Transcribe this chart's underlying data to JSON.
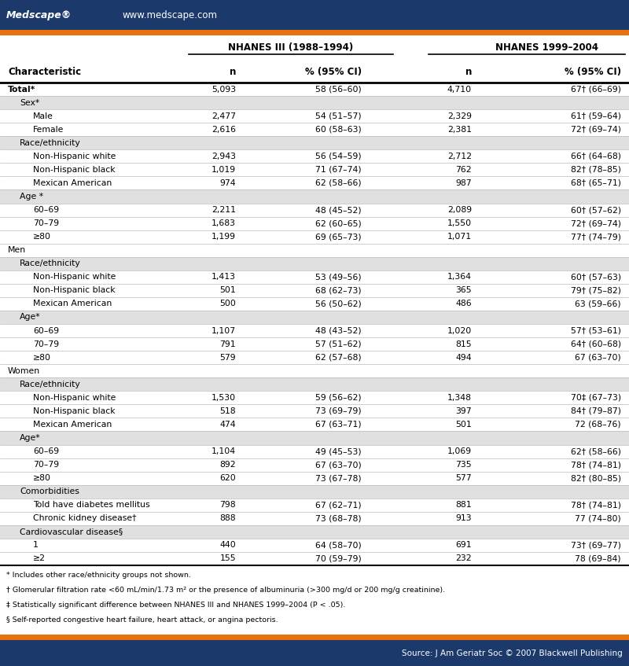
{
  "header_bg": "#1b3a6b",
  "header_text": "#ffffff",
  "orange_bar": "#e8720c",
  "footer_bg": "#1b3a6b",
  "footer_text": "#ffffff",
  "table_bg": "#ffffff",
  "shaded_bg": "#e0e0e0",
  "title_nhanes3": "NHANES III (1988–1994)",
  "title_nhanes4": "NHANES 1999–2004",
  "col_headers": [
    "Characteristic",
    "n",
    "% (95% CI)",
    "n",
    "% (95% CI)"
  ],
  "rows": [
    {
      "label": "Total*",
      "indent": 0,
      "bold": true,
      "n1": "5,093",
      "ci1": "58 (56–60)",
      "n2": "4,710",
      "ci2": "67† (66–69)",
      "shaded": false,
      "section": false
    },
    {
      "label": "Sex*",
      "indent": 1,
      "bold": false,
      "n1": "",
      "ci1": "",
      "n2": "",
      "ci2": "",
      "shaded": true,
      "section": true
    },
    {
      "label": "Male",
      "indent": 2,
      "bold": false,
      "n1": "2,477",
      "ci1": "54 (51–57)",
      "n2": "2,329",
      "ci2": "61† (59–64)",
      "shaded": false,
      "section": false
    },
    {
      "label": "Female",
      "indent": 2,
      "bold": false,
      "n1": "2,616",
      "ci1": "60 (58–63)",
      "n2": "2,381",
      "ci2": "72† (69–74)",
      "shaded": false,
      "section": false
    },
    {
      "label": "Race/ethnicity",
      "indent": 1,
      "bold": false,
      "n1": "",
      "ci1": "",
      "n2": "",
      "ci2": "",
      "shaded": true,
      "section": true
    },
    {
      "label": "Non-Hispanic white",
      "indent": 2,
      "bold": false,
      "n1": "2,943",
      "ci1": "56 (54–59)",
      "n2": "2,712",
      "ci2": "66† (64–68)",
      "shaded": false,
      "section": false
    },
    {
      "label": "Non-Hispanic black",
      "indent": 2,
      "bold": false,
      "n1": "1,019",
      "ci1": "71 (67–74)",
      "n2": "762",
      "ci2": "82† (78–85)",
      "shaded": false,
      "section": false
    },
    {
      "label": "Mexican American",
      "indent": 2,
      "bold": false,
      "n1": "974",
      "ci1": "62 (58–66)",
      "n2": "987",
      "ci2": "68† (65–71)",
      "shaded": false,
      "section": false
    },
    {
      "label": "Age *",
      "indent": 1,
      "bold": false,
      "n1": "",
      "ci1": "",
      "n2": "",
      "ci2": "",
      "shaded": true,
      "section": true
    },
    {
      "label": "60–69",
      "indent": 2,
      "bold": false,
      "n1": "2,211",
      "ci1": "48 (45–52)",
      "n2": "2,089",
      "ci2": "60† (57–62)",
      "shaded": false,
      "section": false
    },
    {
      "label": "70–79",
      "indent": 2,
      "bold": false,
      "n1": "1,683",
      "ci1": "62 (60–65)",
      "n2": "1,550",
      "ci2": "72† (69–74)",
      "shaded": false,
      "section": false
    },
    {
      "label": "≥80",
      "indent": 2,
      "bold": false,
      "n1": "1,199",
      "ci1": "69 (65–73)",
      "n2": "1,071",
      "ci2": "77† (74–79)",
      "shaded": false,
      "section": false
    },
    {
      "label": "Men",
      "indent": 0,
      "bold": false,
      "n1": "",
      "ci1": "",
      "n2": "",
      "ci2": "",
      "shaded": false,
      "section": true
    },
    {
      "label": "Race/ethnicity",
      "indent": 1,
      "bold": false,
      "n1": "",
      "ci1": "",
      "n2": "",
      "ci2": "",
      "shaded": true,
      "section": true
    },
    {
      "label": "Non-Hispanic white",
      "indent": 2,
      "bold": false,
      "n1": "1,413",
      "ci1": "53 (49–56)",
      "n2": "1,364",
      "ci2": "60† (57–63)",
      "shaded": false,
      "section": false
    },
    {
      "label": "Non-Hispanic black",
      "indent": 2,
      "bold": false,
      "n1": "501",
      "ci1": "68 (62–73)",
      "n2": "365",
      "ci2": "79† (75–82)",
      "shaded": false,
      "section": false
    },
    {
      "label": "Mexican American",
      "indent": 2,
      "bold": false,
      "n1": "500",
      "ci1": "56 (50–62)",
      "n2": "486",
      "ci2": "63 (59–66)",
      "shaded": false,
      "section": false
    },
    {
      "label": "Age*",
      "indent": 1,
      "bold": false,
      "n1": "",
      "ci1": "",
      "n2": "",
      "ci2": "",
      "shaded": true,
      "section": true
    },
    {
      "label": "60–69",
      "indent": 2,
      "bold": false,
      "n1": "1,107",
      "ci1": "48 (43–52)",
      "n2": "1,020",
      "ci2": "57† (53–61)",
      "shaded": false,
      "section": false
    },
    {
      "label": "70–79",
      "indent": 2,
      "bold": false,
      "n1": "791",
      "ci1": "57 (51–62)",
      "n2": "815",
      "ci2": "64† (60–68)",
      "shaded": false,
      "section": false
    },
    {
      "label": "≥80",
      "indent": 2,
      "bold": false,
      "n1": "579",
      "ci1": "62 (57–68)",
      "n2": "494",
      "ci2": "67 (63–70)",
      "shaded": false,
      "section": false
    },
    {
      "label": "Women",
      "indent": 0,
      "bold": false,
      "n1": "",
      "ci1": "",
      "n2": "",
      "ci2": "",
      "shaded": false,
      "section": true
    },
    {
      "label": "Race/ethnicity",
      "indent": 1,
      "bold": false,
      "n1": "",
      "ci1": "",
      "n2": "",
      "ci2": "",
      "shaded": true,
      "section": true
    },
    {
      "label": "Non-Hispanic white",
      "indent": 2,
      "bold": false,
      "n1": "1,530",
      "ci1": "59 (56–62)",
      "n2": "1,348",
      "ci2": "70‡ (67–73)",
      "shaded": false,
      "section": false
    },
    {
      "label": "Non-Hispanic black",
      "indent": 2,
      "bold": false,
      "n1": "518",
      "ci1": "73 (69–79)",
      "n2": "397",
      "ci2": "84† (79–87)",
      "shaded": false,
      "section": false
    },
    {
      "label": "Mexican American",
      "indent": 2,
      "bold": false,
      "n1": "474",
      "ci1": "67 (63–71)",
      "n2": "501",
      "ci2": "72 (68–76)",
      "shaded": false,
      "section": false
    },
    {
      "label": "Age*",
      "indent": 1,
      "bold": false,
      "n1": "",
      "ci1": "",
      "n2": "",
      "ci2": "",
      "shaded": true,
      "section": true
    },
    {
      "label": "60–69",
      "indent": 2,
      "bold": false,
      "n1": "1,104",
      "ci1": "49 (45–53)",
      "n2": "1,069",
      "ci2": "62† (58–66)",
      "shaded": false,
      "section": false
    },
    {
      "label": "70–79",
      "indent": 2,
      "bold": false,
      "n1": "892",
      "ci1": "67 (63–70)",
      "n2": "735",
      "ci2": "78† (74–81)",
      "shaded": false,
      "section": false
    },
    {
      "label": "≥80",
      "indent": 2,
      "bold": false,
      "n1": "620",
      "ci1": "73 (67–78)",
      "n2": "577",
      "ci2": "82† (80–85)",
      "shaded": false,
      "section": false
    },
    {
      "label": "Comorbidities",
      "indent": 1,
      "bold": false,
      "n1": "",
      "ci1": "",
      "n2": "",
      "ci2": "",
      "shaded": true,
      "section": true
    },
    {
      "label": "Told have diabetes mellitus",
      "indent": 2,
      "bold": false,
      "n1": "798",
      "ci1": "67 (62–71)",
      "n2": "881",
      "ci2": "78† (74–81)",
      "shaded": false,
      "section": false
    },
    {
      "label": "Chronic kidney disease†",
      "indent": 2,
      "bold": false,
      "n1": "888",
      "ci1": "73 (68–78)",
      "n2": "913",
      "ci2": "77 (74–80)",
      "shaded": false,
      "section": false
    },
    {
      "label": "Cardiovascular disease§",
      "indent": 1,
      "bold": false,
      "n1": "",
      "ci1": "",
      "n2": "",
      "ci2": "",
      "shaded": true,
      "section": true
    },
    {
      "label": "1",
      "indent": 2,
      "bold": false,
      "n1": "440",
      "ci1": "64 (58–70)",
      "n2": "691",
      "ci2": "73† (69–77)",
      "shaded": false,
      "section": false
    },
    {
      "label": "≥2",
      "indent": 2,
      "bold": false,
      "n1": "155",
      "ci1": "70 (59–79)",
      "n2": "232",
      "ci2": "78 (69–84)",
      "shaded": false,
      "section": false
    }
  ],
  "footnotes": [
    "* Includes other race/ethnicity groups not shown.",
    "† Glomerular filtration rate <60 mL/min/1.73 m² or the presence of albuminuria (>300 mg/d or 200 mg/g creatinine).",
    "‡ Statistically significant difference between NHANES III and NHANES 1999–2004 (P < .05).",
    "§ Self-reported congestive heart failure, heart attack, or angina pectoris."
  ],
  "source_text": "Source: J Am Geriatr Soc © 2007 Blackwell Publishing",
  "medscape_text": "Medscape®",
  "url_text": "www.medscape.com"
}
